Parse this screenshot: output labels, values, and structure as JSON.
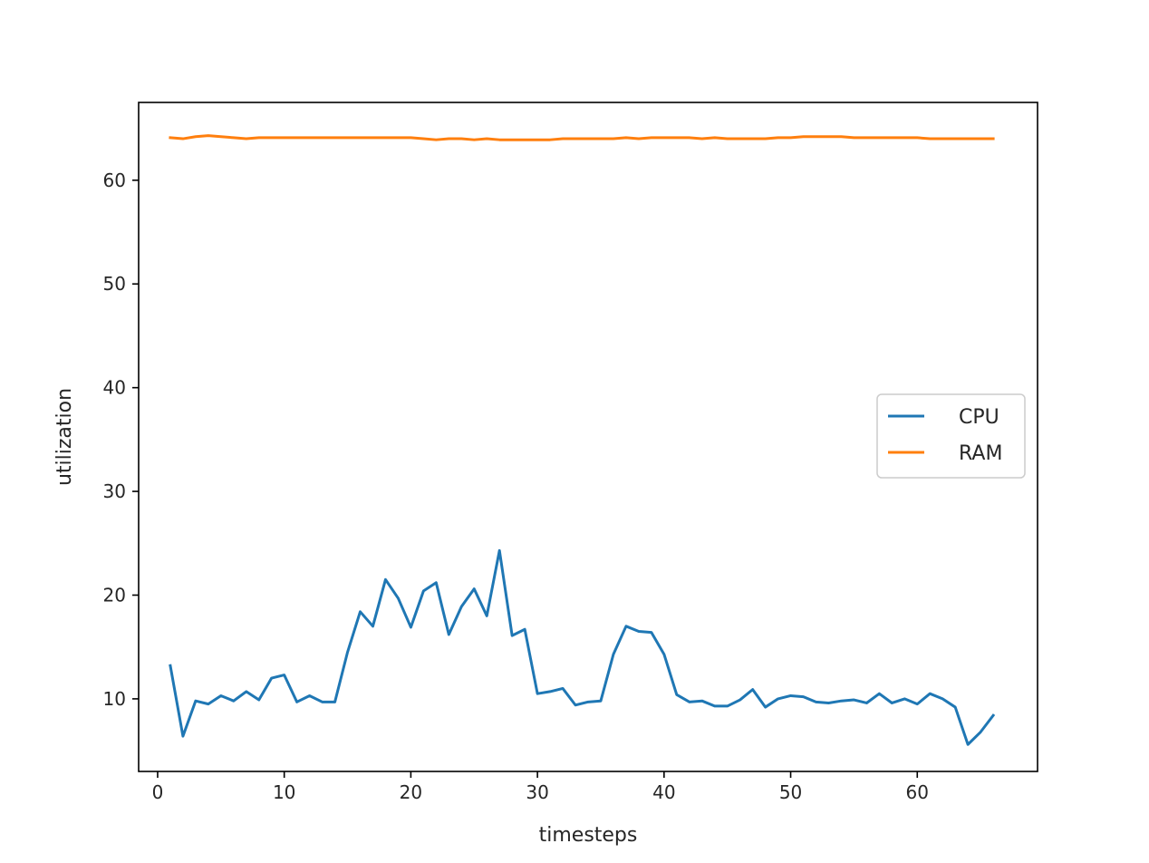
{
  "chart_data": {
    "type": "line",
    "title": "",
    "xlabel": "timesteps",
    "ylabel": "utilization",
    "xlim": [
      -1.5,
      69.5
    ],
    "ylim": [
      3.0,
      67.5
    ],
    "xticks": [
      0,
      10,
      20,
      30,
      40,
      50,
      60
    ],
    "yticks": [
      10,
      20,
      30,
      40,
      50,
      60
    ],
    "grid": false,
    "legend_position": "center-right",
    "x": [
      1,
      2,
      3,
      4,
      5,
      6,
      7,
      8,
      9,
      10,
      11,
      12,
      13,
      14,
      15,
      16,
      17,
      18,
      19,
      20,
      21,
      22,
      23,
      24,
      25,
      26,
      27,
      28,
      29,
      30,
      31,
      32,
      33,
      34,
      35,
      36,
      37,
      38,
      39,
      40,
      41,
      42,
      43,
      44,
      45,
      46,
      47,
      48,
      49,
      50,
      51,
      52,
      53,
      54,
      55,
      56,
      57,
      58,
      59,
      60,
      61,
      62,
      63,
      64,
      65,
      66
    ],
    "series": [
      {
        "name": "CPU",
        "color": "#1f77b4",
        "values": [
          13.2,
          6.4,
          9.8,
          9.5,
          10.3,
          9.8,
          10.7,
          9.9,
          12.0,
          12.3,
          9.7,
          10.3,
          9.7,
          9.7,
          14.5,
          18.4,
          17.0,
          21.5,
          19.7,
          16.9,
          20.4,
          21.2,
          16.2,
          18.9,
          20.6,
          18.0,
          24.3,
          16.1,
          16.7,
          10.5,
          10.7,
          11.0,
          9.4,
          9.7,
          9.8,
          14.3,
          17.0,
          16.5,
          16.4,
          14.3,
          10.4,
          9.7,
          9.8,
          9.3,
          9.3,
          9.9,
          10.9,
          9.2,
          10.0,
          10.3,
          10.2,
          9.7,
          9.6,
          9.8,
          9.9,
          9.6,
          10.5,
          9.6,
          10.0,
          9.5,
          10.5,
          10.0,
          9.2,
          5.6,
          6.8,
          8.4
        ]
      },
      {
        "name": "RAM",
        "color": "#ff7f0e",
        "values": [
          64.1,
          64.0,
          64.2,
          64.3,
          64.2,
          64.1,
          64.0,
          64.1,
          64.1,
          64.1,
          64.1,
          64.1,
          64.1,
          64.1,
          64.1,
          64.1,
          64.1,
          64.1,
          64.1,
          64.1,
          64.0,
          63.9,
          64.0,
          64.0,
          63.9,
          64.0,
          63.9,
          63.9,
          63.9,
          63.9,
          63.9,
          64.0,
          64.0,
          64.0,
          64.0,
          64.0,
          64.1,
          64.0,
          64.1,
          64.1,
          64.1,
          64.1,
          64.0,
          64.1,
          64.0,
          64.0,
          64.0,
          64.0,
          64.1,
          64.1,
          64.2,
          64.2,
          64.2,
          64.2,
          64.1,
          64.1,
          64.1,
          64.1,
          64.1,
          64.1,
          64.0,
          64.0,
          64.0,
          64.0,
          64.0,
          64.0
        ]
      }
    ]
  }
}
